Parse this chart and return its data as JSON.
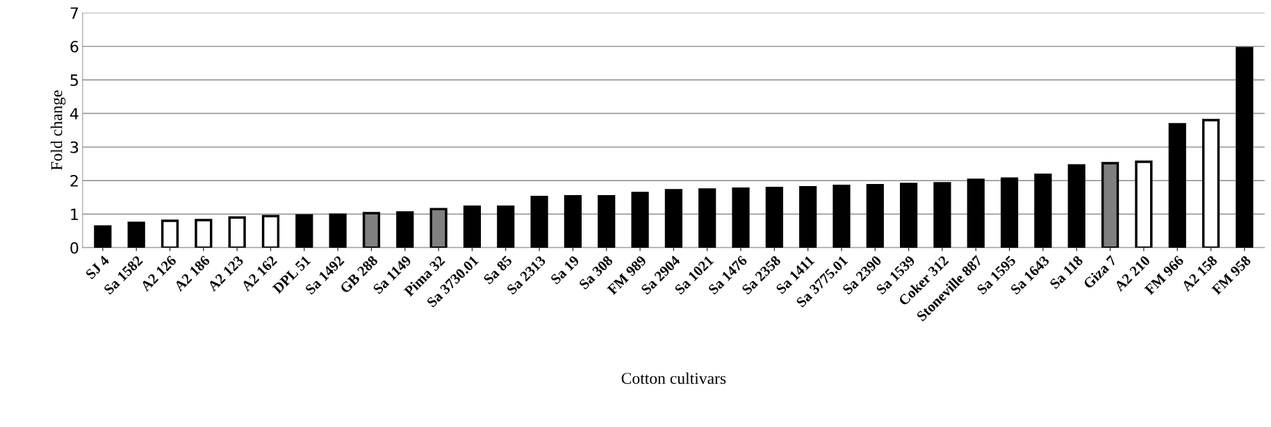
{
  "chart_data": {
    "type": "bar",
    "xlabel": "Cotton cultivars",
    "ylabel": "Fold change",
    "categories": [
      "SJ 4",
      "Sa 1582",
      "A2 126",
      "A2 186",
      "A2 123",
      "A2 162",
      "DPL 51",
      "Sa 1492",
      "GB 288",
      "Sa 1149",
      "Pima 32",
      "Sa 3730.01",
      "Sa 85",
      "Sa 2313",
      "Sa 19",
      "Sa 308",
      "FM 989",
      "Sa 2904",
      "Sa 1021",
      "Sa 1476",
      "Sa 2358",
      "Sa 1411",
      "Sa 3775.01",
      "Sa 2390",
      "Sa 1539",
      "Coker 312",
      "Stoneville 887",
      "Sa 1595",
      "Sa 1643",
      "Sa 118",
      "Giza 7",
      "A2 210",
      "FM 966",
      "A2 158",
      "FM 958"
    ],
    "values": [
      0.63,
      0.74,
      0.8,
      0.82,
      0.9,
      0.94,
      0.96,
      0.98,
      1.03,
      1.05,
      1.15,
      1.22,
      1.22,
      1.51,
      1.53,
      1.53,
      1.63,
      1.71,
      1.73,
      1.76,
      1.78,
      1.8,
      1.84,
      1.86,
      1.9,
      1.92,
      2.02,
      2.06,
      2.17,
      2.45,
      2.52,
      2.56,
      3.68,
      3.8,
      5.95
    ],
    "colors": [
      "#000000",
      "#000000",
      "#ffffff",
      "#ffffff",
      "#ffffff",
      "#ffffff",
      "#000000",
      "#000000",
      "#808080",
      "#000000",
      "#808080",
      "#000000",
      "#000000",
      "#000000",
      "#000000",
      "#000000",
      "#000000",
      "#000000",
      "#000000",
      "#000000",
      "#000000",
      "#000000",
      "#000000",
      "#000000",
      "#000000",
      "#000000",
      "#000000",
      "#000000",
      "#000000",
      "#000000",
      "#808080",
      "#ffffff",
      "#000000",
      "#ffffff",
      "#000000"
    ],
    "ylim": [
      0,
      7
    ],
    "yticks": [
      0,
      1,
      2,
      3,
      4,
      5,
      6,
      7
    ],
    "grid": "y"
  }
}
